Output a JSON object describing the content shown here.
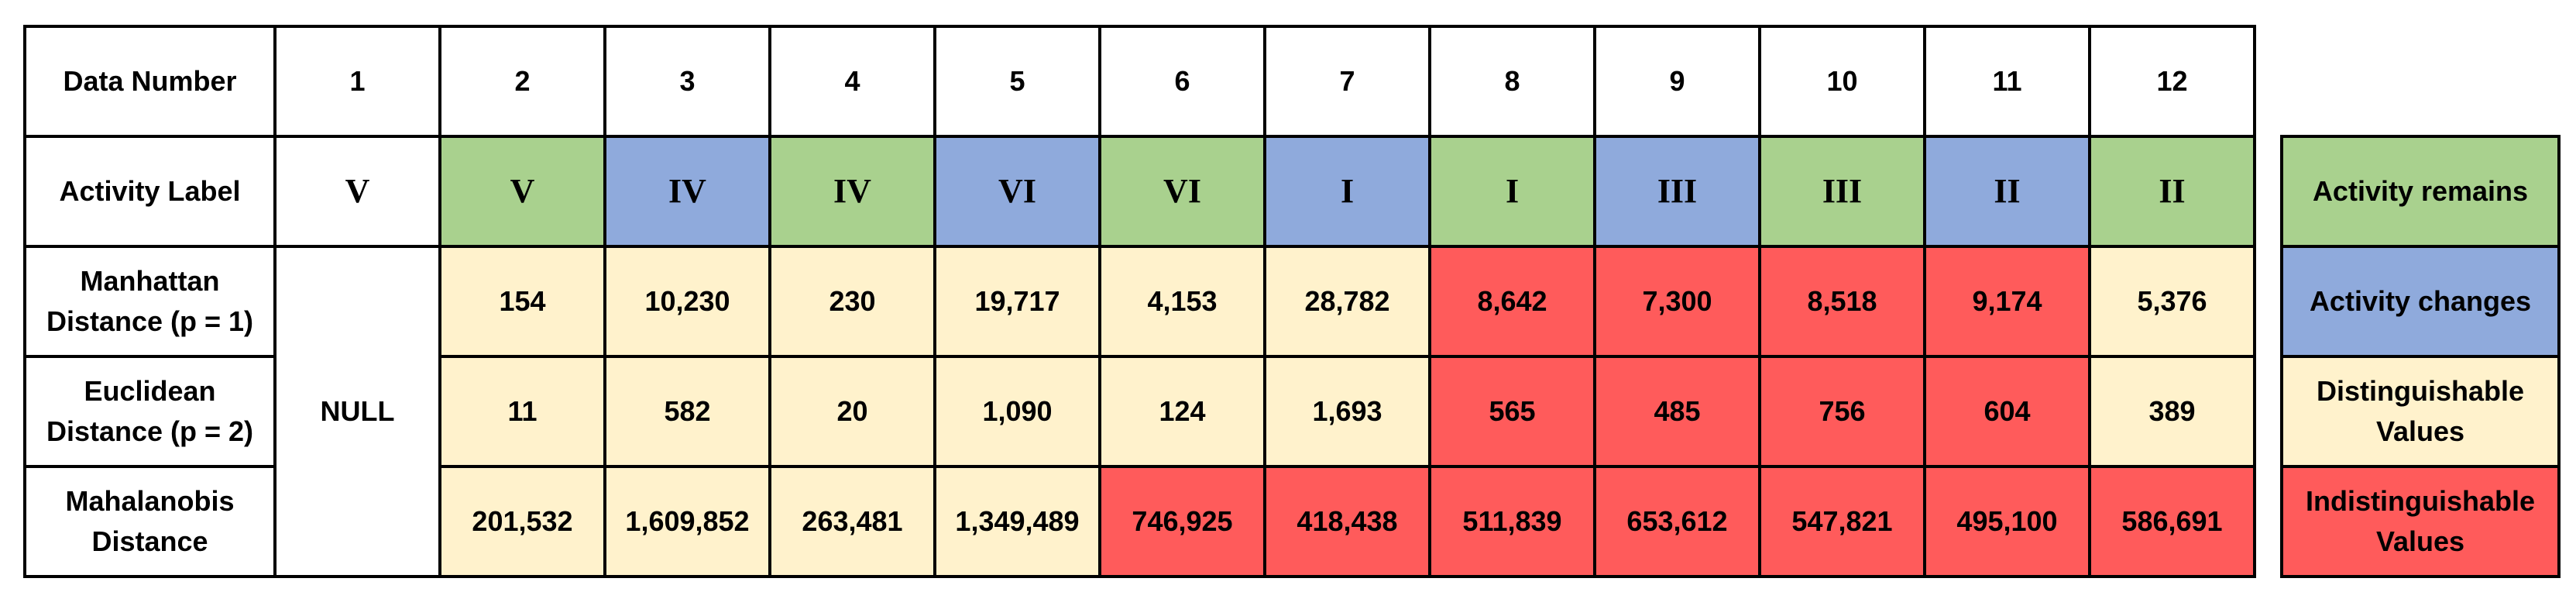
{
  "colors": {
    "remains": "#a9d18e",
    "changes": "#8faadc",
    "distinguishable": "#fff2cc",
    "indistinguishable": "#ff5b5b",
    "header": "#ffffff"
  },
  "table": {
    "rows": [
      {
        "label": "Data Number",
        "cells": [
          {
            "text": "1",
            "tone": "header"
          },
          {
            "text": "2",
            "tone": "header"
          },
          {
            "text": "3",
            "tone": "header"
          },
          {
            "text": "4",
            "tone": "header"
          },
          {
            "text": "5",
            "tone": "header"
          },
          {
            "text": "6",
            "tone": "header"
          },
          {
            "text": "7",
            "tone": "header"
          },
          {
            "text": "8",
            "tone": "header"
          },
          {
            "text": "9",
            "tone": "header"
          },
          {
            "text": "10",
            "tone": "header"
          },
          {
            "text": "11",
            "tone": "header"
          },
          {
            "text": "12",
            "tone": "header"
          }
        ]
      },
      {
        "label": "Activity Label",
        "cells": [
          {
            "text": "V",
            "tone": "header"
          },
          {
            "text": "V",
            "tone": "remains"
          },
          {
            "text": "IV",
            "tone": "changes"
          },
          {
            "text": "IV",
            "tone": "remains"
          },
          {
            "text": "VI",
            "tone": "changes"
          },
          {
            "text": "VI",
            "tone": "remains"
          },
          {
            "text": "I",
            "tone": "changes"
          },
          {
            "text": "I",
            "tone": "remains"
          },
          {
            "text": "III",
            "tone": "changes"
          },
          {
            "text": "III",
            "tone": "remains"
          },
          {
            "text": "II",
            "tone": "changes"
          },
          {
            "text": "II",
            "tone": "remains"
          }
        ]
      },
      {
        "label": "Manhattan Distance (p = 1)",
        "cells": [
          {
            "text": "154",
            "tone": "distinguishable"
          },
          {
            "text": "10,230",
            "tone": "distinguishable"
          },
          {
            "text": "230",
            "tone": "distinguishable"
          },
          {
            "text": "19,717",
            "tone": "distinguishable"
          },
          {
            "text": "4,153",
            "tone": "distinguishable"
          },
          {
            "text": "28,782",
            "tone": "distinguishable"
          },
          {
            "text": "8,642",
            "tone": "indistinguishable"
          },
          {
            "text": "7,300",
            "tone": "indistinguishable"
          },
          {
            "text": "8,518",
            "tone": "indistinguishable"
          },
          {
            "text": "9,174",
            "tone": "indistinguishable"
          },
          {
            "text": "5,376",
            "tone": "distinguishable"
          }
        ]
      },
      {
        "label": "Euclidean Distance (p = 2)",
        "cells": [
          {
            "text": "11",
            "tone": "distinguishable"
          },
          {
            "text": "582",
            "tone": "distinguishable"
          },
          {
            "text": "20",
            "tone": "distinguishable"
          },
          {
            "text": "1,090",
            "tone": "distinguishable"
          },
          {
            "text": "124",
            "tone": "distinguishable"
          },
          {
            "text": "1,693",
            "tone": "distinguishable"
          },
          {
            "text": "565",
            "tone": "indistinguishable"
          },
          {
            "text": "485",
            "tone": "indistinguishable"
          },
          {
            "text": "756",
            "tone": "indistinguishable"
          },
          {
            "text": "604",
            "tone": "indistinguishable"
          },
          {
            "text": "389",
            "tone": "distinguishable"
          }
        ]
      },
      {
        "label": "Mahalanobis Distance",
        "cells": [
          {
            "text": "201,532",
            "tone": "distinguishable"
          },
          {
            "text": "1,609,852",
            "tone": "distinguishable"
          },
          {
            "text": "263,481",
            "tone": "distinguishable"
          },
          {
            "text": "1,349,489",
            "tone": "distinguishable"
          },
          {
            "text": "746,925",
            "tone": "indistinguishable"
          },
          {
            "text": "418,438",
            "tone": "indistinguishable"
          },
          {
            "text": "511,839",
            "tone": "indistinguishable"
          },
          {
            "text": "653,612",
            "tone": "indistinguishable"
          },
          {
            "text": "547,821",
            "tone": "indistinguishable"
          },
          {
            "text": "495,100",
            "tone": "indistinguishable"
          },
          {
            "text": "586,691",
            "tone": "indistinguishable"
          }
        ]
      }
    ],
    "null_text": "NULL"
  },
  "legend": [
    {
      "text": "Activity remains",
      "tone": "remains"
    },
    {
      "text": "Activity changes",
      "tone": "changes"
    },
    {
      "text": "Distinguishable Values",
      "tone": "distinguishable"
    },
    {
      "text": "Indistinguishable Values",
      "tone": "indistinguishable"
    }
  ]
}
